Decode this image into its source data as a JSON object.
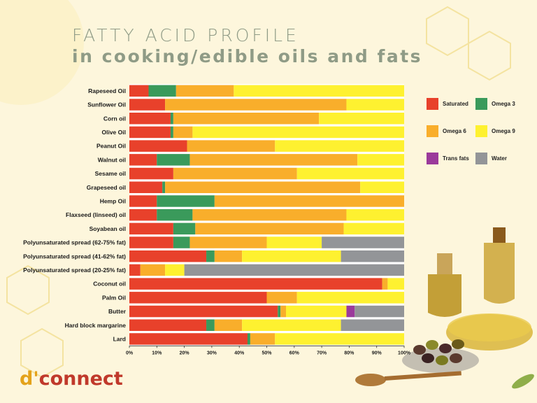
{
  "title": {
    "line1": "FATTY ACID PROFILE",
    "line2": "in cooking/edible oils and fats"
  },
  "brand": {
    "prefix": "d'",
    "rest": "connect"
  },
  "chart_data": {
    "type": "bar",
    "orientation": "horizontal",
    "stacked": true,
    "xlim": [
      0,
      100
    ],
    "x_ticks": [
      "0%",
      "10%",
      "20%",
      "30%",
      "40%",
      "50%",
      "60%",
      "70%",
      "80%",
      "90%",
      "100%"
    ],
    "legend_position": "right",
    "categories": [
      "Rapeseed Oil",
      "Sunflower Oil",
      "Corn oil",
      "Olive Oil",
      "Peanut Oil",
      "Walnut oil",
      "Sesame oil",
      "Grapeseed oil",
      "Hemp Oil",
      "Flaxseed (linseed) oil",
      "Soyabean oil",
      "Polyunsaturated spread (62-75% fat)",
      "Polyunsaturated spread (41-62% fat)",
      "Polyunsaturated spread (20-25% fat)",
      "Coconut oil",
      "Palm Oil",
      "Butter",
      "Hard block margarine",
      "Lard"
    ],
    "series": [
      {
        "name": "Saturated",
        "color": "#e8412b",
        "values": [
          7,
          13,
          15,
          15,
          21,
          10,
          16,
          12,
          10,
          10,
          16,
          16,
          28,
          4,
          92,
          50,
          54,
          28,
          43
        ]
      },
      {
        "name": "Omega 3",
        "color": "#3a9a5b",
        "values": [
          10,
          0,
          1,
          1,
          0,
          12,
          0,
          1,
          21,
          13,
          8,
          6,
          3,
          0,
          0,
          0,
          1,
          3,
          1
        ]
      },
      {
        "name": "Omega 6",
        "color": "#f9ae2b",
        "values": [
          21,
          66,
          53,
          7,
          32,
          61,
          45,
          71,
          69,
          56,
          54,
          28,
          10,
          9,
          2,
          11,
          2,
          10,
          9
        ]
      },
      {
        "name": "Omega 9",
        "color": "#fef130",
        "values": [
          62,
          21,
          31,
          77,
          47,
          17,
          39,
          16,
          0,
          21,
          22,
          20,
          36,
          7,
          6,
          39,
          22,
          36,
          47
        ]
      },
      {
        "name": "Trans fats",
        "color": "#9b3a9b",
        "values": [
          0,
          0,
          0,
          0,
          0,
          0,
          0,
          0,
          0,
          0,
          0,
          0,
          0,
          0,
          0,
          0,
          3,
          0,
          0
        ]
      },
      {
        "name": "Water",
        "color": "#939598",
        "values": [
          0,
          0,
          0,
          0,
          0,
          0,
          0,
          0,
          0,
          0,
          0,
          30,
          23,
          80,
          0,
          0,
          18,
          23,
          0
        ]
      }
    ]
  }
}
